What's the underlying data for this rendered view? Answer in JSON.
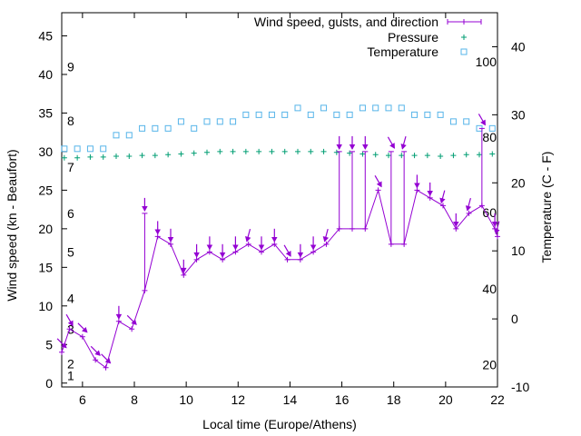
{
  "chart_data": {
    "type": "line",
    "title": "",
    "xlabel": "Local time (Europe/Athens)",
    "ylabel": "Wind speed (kn - Beaufort)",
    "y2label": "Temperature (C - F)",
    "xlim": [
      5.2,
      22
    ],
    "ylim": [
      -0.5,
      48
    ],
    "y2lim": [
      -10,
      45
    ],
    "x_ticks": [
      6,
      8,
      10,
      12,
      14,
      16,
      18,
      20,
      22
    ],
    "y_ticks": [
      0,
      5,
      10,
      15,
      20,
      25,
      30,
      35,
      40,
      45
    ],
    "y2_ticks": [
      -10,
      0,
      10,
      20,
      30,
      40
    ],
    "fahrenheit_labels": [
      {
        "label": "20",
        "celsius": -6.7
      },
      {
        "label": "40",
        "celsius": 4.4
      },
      {
        "label": "60",
        "celsius": 15.6
      },
      {
        "label": "80",
        "celsius": 26.7
      },
      {
        "label": "100",
        "celsius": 37.8
      }
    ],
    "beaufort_labels": [
      {
        "label": "1",
        "knots": 1
      },
      {
        "label": "2",
        "knots": 2.5
      },
      {
        "label": "3",
        "knots": 7
      },
      {
        "label": "4",
        "knots": 11
      },
      {
        "label": "5",
        "knots": 17
      },
      {
        "label": "6",
        "knots": 22
      },
      {
        "label": "7",
        "knots": 28
      },
      {
        "label": "8",
        "knots": 34
      },
      {
        "label": "9",
        "knots": 41
      }
    ],
    "legend_position": "top-right",
    "series": [
      {
        "name": "Wind speed, gusts, and direction",
        "color": "#9400d3",
        "points": [
          {
            "t": 5.2,
            "speed": 4,
            "gust": 4,
            "dir": 315
          },
          {
            "t": 5.5,
            "speed": 7,
            "gust": 7,
            "dir": 330
          },
          {
            "t": 6.0,
            "speed": 6,
            "gust": 6,
            "dir": 315
          },
          {
            "t": 6.5,
            "speed": 3,
            "gust": 3,
            "dir": 315
          },
          {
            "t": 6.9,
            "speed": 2,
            "gust": 2,
            "dir": 315
          },
          {
            "t": 7.4,
            "speed": 8,
            "gust": 8,
            "dir": 0
          },
          {
            "t": 7.9,
            "speed": 7,
            "gust": 7,
            "dir": 315
          },
          {
            "t": 8.4,
            "speed": 12,
            "gust": 22,
            "dir": 0
          },
          {
            "t": 8.9,
            "speed": 19,
            "gust": 19,
            "dir": 0
          },
          {
            "t": 9.4,
            "speed": 18,
            "gust": 18,
            "dir": 0
          },
          {
            "t": 9.9,
            "speed": 14,
            "gust": 14,
            "dir": 0
          },
          {
            "t": 10.4,
            "speed": 16,
            "gust": 16,
            "dir": 0
          },
          {
            "t": 10.9,
            "speed": 17,
            "gust": 17,
            "dir": 0
          },
          {
            "t": 11.4,
            "speed": 16,
            "gust": 16,
            "dir": 0
          },
          {
            "t": 11.9,
            "speed": 17,
            "gust": 17,
            "dir": 0
          },
          {
            "t": 12.4,
            "speed": 18,
            "gust": 18,
            "dir": 15
          },
          {
            "t": 12.9,
            "speed": 17,
            "gust": 17,
            "dir": 0
          },
          {
            "t": 13.4,
            "speed": 18,
            "gust": 18,
            "dir": 0
          },
          {
            "t": 13.9,
            "speed": 16,
            "gust": 16,
            "dir": 330
          },
          {
            "t": 14.4,
            "speed": 16,
            "gust": 16,
            "dir": 0
          },
          {
            "t": 14.9,
            "speed": 17,
            "gust": 17,
            "dir": 0
          },
          {
            "t": 15.4,
            "speed": 18,
            "gust": 18,
            "dir": 15
          },
          {
            "t": 15.9,
            "speed": 20,
            "gust": 30,
            "dir": 0
          },
          {
            "t": 16.4,
            "speed": 20,
            "gust": 30,
            "dir": 0
          },
          {
            "t": 16.9,
            "speed": 20,
            "gust": 30,
            "dir": 0
          },
          {
            "t": 17.4,
            "speed": 25,
            "gust": 25,
            "dir": 330
          },
          {
            "t": 17.9,
            "speed": 18,
            "gust": 30,
            "dir": 330
          },
          {
            "t": 18.4,
            "speed": 18,
            "gust": 30,
            "dir": 15
          },
          {
            "t": 18.9,
            "speed": 25,
            "gust": 25,
            "dir": 0
          },
          {
            "t": 19.4,
            "speed": 24,
            "gust": 24,
            "dir": 0
          },
          {
            "t": 19.9,
            "speed": 23,
            "gust": 23,
            "dir": 15
          },
          {
            "t": 20.4,
            "speed": 20,
            "gust": 20,
            "dir": 0
          },
          {
            "t": 20.9,
            "speed": 22,
            "gust": 22,
            "dir": 15
          },
          {
            "t": 21.4,
            "speed": 23,
            "gust": 33,
            "dir": 330
          },
          {
            "t": 21.9,
            "speed": 20,
            "gust": 20,
            "dir": 0
          },
          {
            "t": 22.0,
            "speed": 19,
            "gust": 19,
            "dir": 15
          }
        ]
      },
      {
        "name": "Pressure",
        "color": "#009e73",
        "marker": "+",
        "x": [
          5.3,
          5.8,
          6.3,
          6.8,
          7.3,
          7.8,
          8.3,
          8.8,
          9.3,
          9.8,
          10.3,
          10.8,
          11.3,
          11.8,
          12.3,
          12.8,
          13.3,
          13.8,
          14.3,
          14.8,
          15.3,
          15.8,
          16.3,
          16.8,
          17.3,
          17.8,
          18.3,
          18.8,
          19.3,
          19.8,
          20.3,
          20.8,
          21.3,
          21.8
        ],
        "y_knots_axis": [
          29.2,
          29.2,
          29.3,
          29.3,
          29.4,
          29.4,
          29.5,
          29.5,
          29.6,
          29.7,
          29.8,
          29.9,
          30.0,
          30.0,
          30.0,
          30.0,
          30.0,
          30.0,
          30.0,
          30.0,
          30.0,
          29.9,
          29.8,
          29.7,
          29.6,
          29.5,
          29.5,
          29.5,
          29.5,
          29.4,
          29.5,
          29.6,
          29.6,
          29.7
        ]
      },
      {
        "name": "Temperature",
        "color": "#56b4e9",
        "marker": "square",
        "x": [
          5.3,
          5.8,
          6.3,
          6.8,
          7.3,
          7.8,
          8.3,
          8.8,
          9.3,
          9.8,
          10.3,
          10.8,
          11.3,
          11.8,
          12.3,
          12.8,
          13.3,
          13.8,
          14.3,
          14.8,
          15.3,
          15.8,
          16.3,
          16.8,
          17.3,
          17.8,
          18.3,
          18.8,
          19.3,
          19.8,
          20.3,
          20.8,
          21.3,
          21.8
        ],
        "y_celsius": [
          25,
          25,
          25,
          25,
          27,
          27,
          28,
          28,
          28,
          29,
          28,
          29,
          29,
          29,
          30,
          30,
          30,
          30,
          31,
          30,
          31,
          30,
          30,
          31,
          31,
          31,
          31,
          30,
          30,
          30,
          29,
          29,
          28,
          28
        ]
      }
    ]
  }
}
